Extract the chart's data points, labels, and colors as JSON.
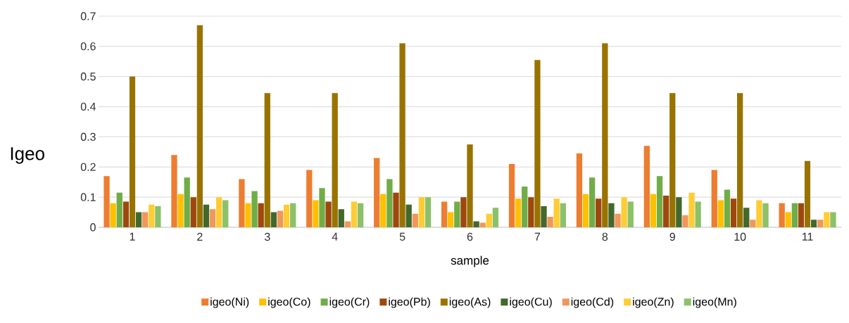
{
  "chart_data": {
    "type": "bar",
    "xlabel": "sample",
    "ylabel": "Igeo",
    "categories": [
      "1",
      "2",
      "3",
      "4",
      "5",
      "6",
      "7",
      "8",
      "9",
      "10",
      "11"
    ],
    "series": [
      {
        "name": "igeo(Ni)",
        "color": "#ed7d31",
        "values": [
          0.17,
          0.24,
          0.16,
          0.19,
          0.23,
          0.085,
          0.21,
          0.245,
          0.27,
          0.19,
          0.08
        ]
      },
      {
        "name": "igeo(Co)",
        "color": "#ffc000",
        "values": [
          0.08,
          0.11,
          0.08,
          0.09,
          0.11,
          0.05,
          0.095,
          0.11,
          0.11,
          0.09,
          0.05
        ]
      },
      {
        "name": "igeo(Cr)",
        "color": "#70ad47",
        "values": [
          0.115,
          0.165,
          0.12,
          0.13,
          0.16,
          0.085,
          0.135,
          0.165,
          0.17,
          0.125,
          0.08
        ]
      },
      {
        "name": "igeo(Pb)",
        "color": "#9e480e",
        "values": [
          0.085,
          0.1,
          0.08,
          0.085,
          0.115,
          0.1,
          0.1,
          0.095,
          0.105,
          0.095,
          0.08
        ]
      },
      {
        "name": "igeo(As)",
        "color": "#997300",
        "values": [
          0.5,
          0.67,
          0.445,
          0.445,
          0.61,
          0.275,
          0.555,
          0.61,
          0.445,
          0.445,
          0.22
        ]
      },
      {
        "name": "igeo(Cu)",
        "color": "#43682b",
        "values": [
          0.05,
          0.075,
          0.05,
          0.06,
          0.075,
          0.02,
          0.07,
          0.08,
          0.1,
          0.065,
          0.025
        ]
      },
      {
        "name": "igeo(Cd)",
        "color": "#f1975a",
        "values": [
          0.05,
          0.06,
          0.055,
          0.02,
          0.045,
          0.015,
          0.035,
          0.045,
          0.04,
          0.025,
          0.025
        ]
      },
      {
        "name": "igeo(Zn)",
        "color": "#ffcd33",
        "values": [
          0.075,
          0.1,
          0.075,
          0.085,
          0.1,
          0.045,
          0.095,
          0.1,
          0.115,
          0.09,
          0.05
        ]
      },
      {
        "name": "igeo(Mn)",
        "color": "#8cc168",
        "values": [
          0.07,
          0.09,
          0.08,
          0.08,
          0.1,
          0.065,
          0.08,
          0.085,
          0.085,
          0.08,
          0.05
        ]
      }
    ],
    "ylim": [
      0,
      0.7
    ],
    "yticks": [
      0,
      0.1,
      0.2,
      0.3,
      0.4,
      0.5,
      0.6,
      0.7
    ],
    "grid": "y",
    "legend": "bottom"
  }
}
